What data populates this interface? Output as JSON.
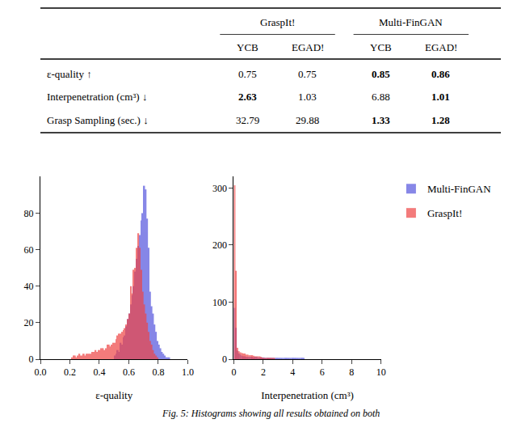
{
  "chart_data": [
    {
      "type": "table",
      "col_groups": [
        "GraspIt!",
        "Multi-FinGAN"
      ],
      "col_group_span": [
        2,
        2
      ],
      "col_headers": [
        "YCB",
        "EGAD!",
        "YCB",
        "EGAD!"
      ],
      "rows": [
        {
          "label": "ε-quality ↑",
          "values": [
            "0.75",
            "0.75",
            "0.85",
            "0.86"
          ],
          "bold": [
            false,
            false,
            true,
            true
          ]
        },
        {
          "label": "Interpenetration (cm³) ↓",
          "values": [
            "2.63",
            "1.03",
            "6.88",
            "1.01"
          ],
          "bold": [
            true,
            false,
            false,
            true
          ]
        },
        {
          "label": "Grasp Sampling (sec.) ↓",
          "values": [
            "32.79",
            "29.88",
            "1.33",
            "1.28"
          ],
          "bold": [
            false,
            false,
            true,
            true
          ]
        }
      ]
    },
    {
      "type": "histogram",
      "xlabel": "ε-quality",
      "xlim": [
        0,
        1
      ],
      "ylim": [
        0,
        100
      ],
      "xticks": [
        {
          "value": 0,
          "label": "0.0"
        },
        0.2,
        0.4,
        0.6,
        0.8,
        {
          "value": 1.0,
          "label": "1.0"
        }
      ],
      "yticks": [
        0,
        20,
        40,
        60,
        80
      ],
      "grid": false,
      "bins": [
        0,
        0.01,
        0.02,
        0.03,
        0.04,
        0.05,
        0.06,
        0.07,
        0.08,
        0.09,
        0.1,
        0.11,
        0.12,
        0.13,
        0.14,
        0.15,
        0.16,
        0.17,
        0.18,
        0.19,
        0.2,
        0.21,
        0.22,
        0.23,
        0.24,
        0.25,
        0.26,
        0.27,
        0.28,
        0.29,
        0.3,
        0.31,
        0.32,
        0.33,
        0.34,
        0.35,
        0.36,
        0.37,
        0.38,
        0.39,
        0.4,
        0.41,
        0.42,
        0.43,
        0.44,
        0.45,
        0.46,
        0.47,
        0.48,
        0.49,
        0.5,
        0.51,
        0.52,
        0.53,
        0.54,
        0.55,
        0.56,
        0.57,
        0.58,
        0.59,
        0.6,
        0.61,
        0.62,
        0.63,
        0.64,
        0.65,
        0.66,
        0.67,
        0.68,
        0.69,
        0.7,
        0.71,
        0.72,
        0.73,
        0.74,
        0.75,
        0.76,
        0.77,
        0.78,
        0.79,
        0.8,
        0.81,
        0.82,
        0.83,
        0.84,
        0.85,
        0.86,
        0.87,
        0.88,
        0.89,
        0.9,
        0.91,
        0.92,
        0.93,
        0.94,
        0.95,
        0.96,
        0.97,
        0.98,
        0.99,
        1
      ],
      "series": [
        {
          "name": "Multi-FinGAN",
          "color": "#5555dd",
          "values": [
            0,
            0,
            0,
            0,
            0,
            0,
            0,
            0,
            0,
            0,
            0,
            0,
            0,
            0,
            0,
            0,
            0,
            0,
            0,
            0,
            0,
            0,
            0,
            0,
            0,
            0,
            0,
            0,
            0,
            0,
            0,
            0,
            0,
            0,
            0,
            0,
            0,
            0,
            0,
            0,
            0,
            0,
            0,
            0,
            0,
            0,
            0,
            0,
            0,
            0,
            2,
            3,
            5,
            4,
            9,
            8,
            12,
            13,
            18,
            22,
            25,
            30,
            35,
            40,
            48,
            55,
            62,
            68,
            76,
            80,
            95,
            93,
            77,
            61,
            37,
            29,
            25,
            19,
            15,
            10,
            8,
            6,
            4,
            3,
            2,
            1,
            1,
            1,
            0,
            0,
            0,
            0,
            0,
            0,
            0,
            0,
            0,
            0,
            0,
            0
          ]
        },
        {
          "name": "GraspIt!",
          "color": "#ee4444",
          "values": [
            0,
            0,
            0,
            0,
            0,
            0,
            0,
            0,
            0,
            0,
            0,
            0,
            0,
            0,
            0,
            0,
            0,
            0,
            0,
            0,
            0,
            1,
            2,
            2,
            1,
            2,
            3,
            2,
            2,
            3,
            2,
            3,
            3,
            3,
            3,
            4,
            4,
            5,
            4,
            5,
            5,
            6,
            6,
            5,
            6,
            8,
            8,
            7,
            8,
            9,
            9,
            11,
            13,
            14,
            14,
            15,
            16,
            17,
            19,
            22,
            25,
            40,
            36,
            49,
            50,
            61,
            69,
            61,
            49,
            37,
            30,
            25,
            20,
            15,
            10,
            8,
            5,
            3,
            2,
            1,
            0,
            0,
            0,
            0,
            0,
            0,
            0,
            0,
            0,
            0,
            0,
            0,
            0,
            0,
            0,
            0,
            0,
            0,
            0,
            0
          ]
        }
      ]
    },
    {
      "type": "histogram",
      "xlabel": "Interpenetration (cm³)",
      "xlim": [
        0,
        10
      ],
      "ylim": [
        0,
        320
      ],
      "xticks": [
        0,
        2,
        4,
        6,
        8,
        10
      ],
      "yticks": [
        0,
        100,
        200,
        300
      ],
      "grid": false,
      "bins": [
        0,
        0.1,
        0.2,
        0.3,
        0.4,
        0.5,
        0.6,
        0.7,
        0.8,
        0.9,
        1,
        1.1,
        1.2,
        1.3,
        1.4,
        1.5,
        1.6,
        1.7,
        1.8,
        1.9,
        2,
        2.1,
        2.2,
        2.3,
        2.4,
        2.5,
        2.6,
        2.7,
        2.8,
        2.9,
        3,
        3.1,
        3.2,
        3.3,
        3.4,
        3.5,
        3.6,
        3.7,
        3.8,
        3.9,
        4,
        4.1,
        4.2,
        4.3,
        4.4,
        4.5,
        4.6,
        4.7,
        4.8,
        4.9,
        5,
        5.1,
        5.2,
        5.3,
        5.4,
        5.5,
        5.6,
        5.7,
        5.8,
        5.9,
        6,
        6.1,
        6.2,
        6.3,
        6.4,
        6.5,
        6.6,
        6.7,
        6.8,
        6.9,
        7,
        7.1,
        7.2,
        7.3,
        7.4,
        7.5,
        7.6,
        7.7,
        7.8,
        7.9,
        8,
        8.1,
        8.2,
        8.3,
        8.4,
        8.5,
        8.6,
        8.7,
        8.8,
        8.9,
        9,
        9.1,
        9.2,
        9.3,
        9.4,
        9.5,
        9.6,
        9.7,
        9.8,
        9.9,
        10
      ],
      "series": [
        {
          "name": "Multi-FinGAN",
          "color": "#5555dd",
          "values": [
            90,
            55,
            15,
            10,
            8,
            6,
            5,
            5,
            4,
            4,
            4,
            4,
            4,
            3,
            4,
            4,
            3,
            3,
            3,
            3,
            3,
            2,
            2,
            2,
            2,
            2,
            2,
            2,
            2,
            1,
            1,
            1,
            1,
            1,
            1,
            1,
            1,
            1,
            1,
            1,
            1,
            1,
            1,
            1,
            1,
            1,
            1,
            1,
            0,
            0,
            0,
            0,
            0,
            0,
            0,
            0,
            0,
            0,
            0,
            0,
            0,
            0,
            0,
            0,
            0,
            0,
            0,
            0,
            0,
            0,
            0,
            0,
            0,
            0,
            0,
            0,
            0,
            0,
            0,
            0,
            0,
            0,
            0,
            0,
            0,
            0,
            0,
            0,
            0,
            0,
            0,
            0,
            0,
            0,
            0,
            0,
            0,
            0,
            0,
            0
          ]
        },
        {
          "name": "GraspIt!",
          "color": "#ee4444",
          "values": [
            305,
            155,
            20,
            14,
            12,
            11,
            10,
            10,
            8,
            8,
            7,
            7,
            7,
            6,
            5,
            5,
            5,
            5,
            4,
            3,
            2,
            2,
            2,
            1,
            1,
            1,
            1,
            1,
            0,
            0,
            0,
            0,
            0,
            0,
            0,
            0,
            0,
            0,
            0,
            0,
            0,
            0,
            0,
            0,
            0,
            0,
            0,
            0,
            0,
            0,
            0,
            0,
            0,
            0,
            0,
            0,
            0,
            0,
            0,
            0,
            0,
            0,
            0,
            0,
            0,
            0,
            0,
            0,
            0,
            0,
            0,
            0,
            0,
            0,
            0,
            0,
            0,
            0,
            0,
            0,
            0,
            0,
            0,
            0,
            0,
            0,
            0,
            0,
            0,
            0,
            0,
            0,
            0,
            0,
            0,
            0,
            0,
            0,
            0,
            0
          ]
        }
      ]
    }
  ],
  "caption": "Fig. 5: Histograms showing all results obtained on both"
}
